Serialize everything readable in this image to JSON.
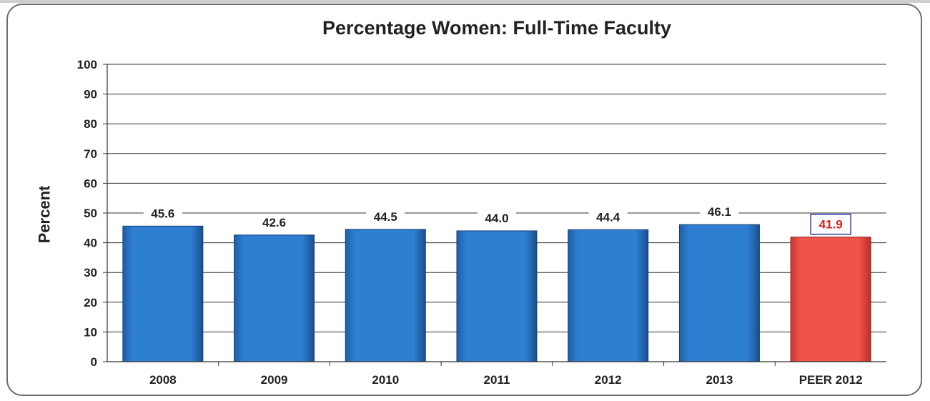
{
  "chart_data": {
    "type": "bar",
    "title": "Percentage Women: Full-Time Faculty",
    "ylabel": "Percent",
    "xlabel": "",
    "categories": [
      "2008",
      "2009",
      "2010",
      "2011",
      "2012",
      "2013",
      "PEER 2012"
    ],
    "values": [
      45.6,
      42.6,
      44.5,
      44.0,
      44.4,
      46.1,
      41.9
    ],
    "value_labels": [
      "45.6",
      "42.6",
      "44.5",
      "44.0",
      "44.4",
      "46.1",
      "41.9"
    ],
    "yticks": [
      "0",
      "10",
      "20",
      "30",
      "40",
      "50",
      "60",
      "70",
      "80",
      "90",
      "100"
    ],
    "ylim": [
      0,
      100
    ],
    "grid": true,
    "colors": {
      "bar": "#2f7fd0",
      "highlight_bar": "#ec4e46",
      "highlight_label_text": "#d62020",
      "highlight_label_border": "#2b3fa0"
    },
    "highlight_index": 6
  }
}
